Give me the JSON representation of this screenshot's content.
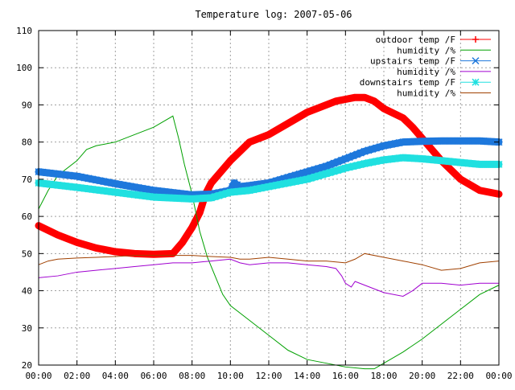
{
  "chart_data": {
    "type": "line",
    "title": "Temperature log: 2007-05-06",
    "xlabel": "",
    "ylabel": "",
    "xlim": [
      0,
      24
    ],
    "ylim": [
      20,
      110
    ],
    "grid": true,
    "legend_position": "top-right",
    "x_ticks": [
      "00:00",
      "02:00",
      "04:00",
      "06:00",
      "08:00",
      "10:00",
      "12:00",
      "14:00",
      "16:00",
      "18:00",
      "20:00",
      "22:00",
      "00:00"
    ],
    "y_ticks": [
      20,
      30,
      40,
      50,
      60,
      70,
      80,
      90,
      100,
      110
    ],
    "series": [
      {
        "name": "outdoor temp /F",
        "color": "#ff0000",
        "marker": "plus",
        "points": [
          [
            0,
            57.5
          ],
          [
            1,
            55
          ],
          [
            2,
            53
          ],
          [
            3,
            51.5
          ],
          [
            4,
            50.5
          ],
          [
            5,
            50
          ],
          [
            6,
            49.8
          ],
          [
            7,
            50
          ],
          [
            7.5,
            53
          ],
          [
            8,
            57
          ],
          [
            8.4,
            61
          ],
          [
            8.7,
            66
          ],
          [
            9,
            69
          ],
          [
            9.5,
            72
          ],
          [
            10,
            75
          ],
          [
            10.5,
            77.5
          ],
          [
            11,
            80
          ],
          [
            12,
            82
          ],
          [
            13,
            85
          ],
          [
            14,
            88
          ],
          [
            15,
            90
          ],
          [
            15.5,
            91
          ],
          [
            16,
            91.5
          ],
          [
            16.5,
            92
          ],
          [
            17,
            92
          ],
          [
            17.5,
            91
          ],
          [
            18,
            89
          ],
          [
            19,
            86.5
          ],
          [
            19.5,
            84
          ],
          [
            20,
            81
          ],
          [
            21,
            75
          ],
          [
            22,
            70
          ],
          [
            23,
            67
          ],
          [
            24,
            66
          ]
        ]
      },
      {
        "name": "humidity /%",
        "color": "#00a000",
        "marker": "none",
        "points": [
          [
            0,
            62
          ],
          [
            0.5,
            67
          ],
          [
            1,
            71
          ],
          [
            2,
            75
          ],
          [
            2.5,
            78
          ],
          [
            3,
            79
          ],
          [
            4,
            80
          ],
          [
            5,
            82
          ],
          [
            6,
            84
          ],
          [
            7,
            87
          ],
          [
            7.3,
            81
          ],
          [
            7.6,
            74
          ],
          [
            8,
            66
          ],
          [
            8.4,
            56
          ],
          [
            8.8,
            49
          ],
          [
            9.2,
            44
          ],
          [
            9.6,
            39
          ],
          [
            10,
            36
          ],
          [
            11,
            32
          ],
          [
            12,
            28
          ],
          [
            13,
            24
          ],
          [
            14,
            21.5
          ],
          [
            15,
            20.5
          ],
          [
            16,
            19.5
          ],
          [
            17,
            19
          ],
          [
            17.5,
            19
          ],
          [
            18,
            20.5
          ],
          [
            19,
            23.5
          ],
          [
            20,
            27
          ],
          [
            21,
            31
          ],
          [
            22,
            35
          ],
          [
            23,
            39
          ],
          [
            24,
            41.5
          ]
        ]
      },
      {
        "name": "upstairs temp /F",
        "color": "#1e78dc",
        "marker": "x",
        "points": [
          [
            0,
            72
          ],
          [
            2,
            70.8
          ],
          [
            4,
            68.8
          ],
          [
            6,
            67
          ],
          [
            8,
            65.8
          ],
          [
            9,
            66
          ],
          [
            10,
            67
          ],
          [
            10.2,
            69
          ],
          [
            10.5,
            68
          ],
          [
            11,
            68.3
          ],
          [
            12,
            69
          ],
          [
            13,
            70.5
          ],
          [
            14,
            72
          ],
          [
            15,
            73.5
          ],
          [
            16,
            75.5
          ],
          [
            17,
            77.5
          ],
          [
            18,
            79
          ],
          [
            19,
            80
          ],
          [
            20,
            80.2
          ],
          [
            21,
            80.3
          ],
          [
            22,
            80.3
          ],
          [
            23,
            80.3
          ],
          [
            24,
            80
          ]
        ]
      },
      {
        "name": "humidity /%",
        "color": "#a000d0",
        "marker": "none",
        "points": [
          [
            0,
            43.5
          ],
          [
            1,
            44
          ],
          [
            2,
            45
          ],
          [
            3,
            45.5
          ],
          [
            4,
            46
          ],
          [
            5,
            46.5
          ],
          [
            6,
            47
          ],
          [
            7,
            47.5
          ],
          [
            8,
            47.5
          ],
          [
            9,
            48
          ],
          [
            10,
            48.5
          ],
          [
            10.5,
            47.5
          ],
          [
            11,
            47
          ],
          [
            12,
            47.5
          ],
          [
            13,
            47.5
          ],
          [
            14,
            47
          ],
          [
            15,
            46.5
          ],
          [
            15.5,
            46
          ],
          [
            15.8,
            44
          ],
          [
            16,
            42
          ],
          [
            16.3,
            41
          ],
          [
            16.5,
            42.5
          ],
          [
            17,
            41.5
          ],
          [
            18,
            39.5
          ],
          [
            19,
            38.5
          ],
          [
            19.5,
            40
          ],
          [
            20,
            42
          ],
          [
            21,
            42
          ],
          [
            22,
            41.5
          ],
          [
            23,
            42
          ],
          [
            24,
            42
          ]
        ]
      },
      {
        "name": "downstairs temp /F",
        "color": "#20e0e0",
        "marker": "star",
        "points": [
          [
            0,
            69
          ],
          [
            2,
            67.8
          ],
          [
            4,
            66.5
          ],
          [
            6,
            65.2
          ],
          [
            8,
            64.7
          ],
          [
            9,
            65
          ],
          [
            10,
            66.5
          ],
          [
            11,
            67
          ],
          [
            12,
            68
          ],
          [
            13,
            69
          ],
          [
            14,
            70
          ],
          [
            15,
            71.5
          ],
          [
            16,
            73
          ],
          [
            17,
            74.2
          ],
          [
            18,
            75.2
          ],
          [
            19,
            75.8
          ],
          [
            20,
            75.5
          ],
          [
            21,
            75
          ],
          [
            22,
            74.5
          ],
          [
            23,
            74
          ],
          [
            24,
            74
          ]
        ]
      },
      {
        "name": "humidity /%",
        "color": "#a04000",
        "marker": "none",
        "points": [
          [
            0,
            47
          ],
          [
            0.5,
            48
          ],
          [
            1,
            48.5
          ],
          [
            2,
            48.8
          ],
          [
            3,
            49
          ],
          [
            4,
            49.2
          ],
          [
            5,
            49.5
          ],
          [
            6,
            49.5
          ],
          [
            7,
            49.5
          ],
          [
            8,
            49.5
          ],
          [
            9,
            49.2
          ],
          [
            10,
            49
          ],
          [
            10.5,
            48.5
          ],
          [
            11,
            48.5
          ],
          [
            12,
            49
          ],
          [
            13,
            48.5
          ],
          [
            14,
            48
          ],
          [
            15,
            48
          ],
          [
            16,
            47.5
          ],
          [
            16.5,
            48.5
          ],
          [
            17,
            50
          ],
          [
            18,
            49
          ],
          [
            19,
            48
          ],
          [
            20,
            47
          ],
          [
            21,
            45.5
          ],
          [
            22,
            46
          ],
          [
            23,
            47.5
          ],
          [
            24,
            48
          ]
        ]
      }
    ]
  }
}
